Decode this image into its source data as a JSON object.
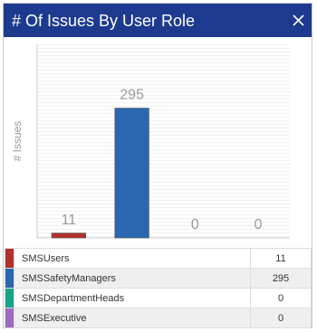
{
  "chart_data": {
    "type": "bar",
    "title": "# Of Issues By User Role",
    "ylabel": "# Issues",
    "categories": [
      "SMSUsers",
      "SMSSafetyManagers",
      "SMSDepartmentHeads",
      "SMSExecutive"
    ],
    "values": [
      11,
      295,
      0,
      0
    ],
    "colors": [
      "#b3312c",
      "#2b67b1",
      "#17a58a",
      "#9b6cc0"
    ],
    "ylim": [
      0,
      440
    ]
  }
}
